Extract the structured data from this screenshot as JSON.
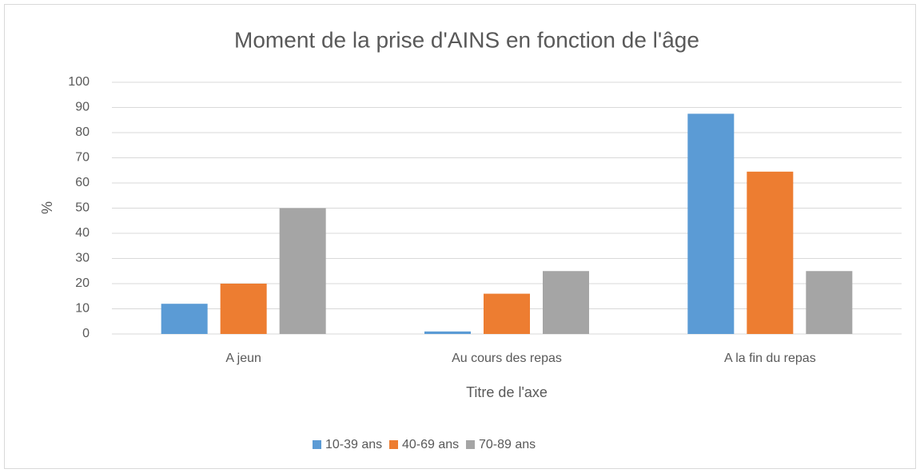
{
  "chart_data": {
    "type": "bar",
    "title": "Moment de la prise d'AINS en fonction de l'âge",
    "x_label": "Titre de l'axe",
    "y_label": "%",
    "categories": [
      "A jeun",
      "Au cours des repas",
      "A la fin du repas"
    ],
    "series": [
      {
        "name": "10-39 ans",
        "color": "#5b9bd5",
        "values": [
          12,
          1,
          87.5
        ]
      },
      {
        "name": "40-69 ans",
        "color": "#ed7d31",
        "values": [
          20,
          16,
          64.5
        ]
      },
      {
        "name": "70-89 ans",
        "color": "#a5a5a5",
        "values": [
          50,
          25,
          25
        ]
      }
    ],
    "ylim": [
      0,
      100
    ],
    "yticks": [
      0,
      10,
      20,
      30,
      40,
      50,
      60,
      70,
      80,
      90,
      100
    ],
    "grid": true,
    "legend": "bottom"
  }
}
